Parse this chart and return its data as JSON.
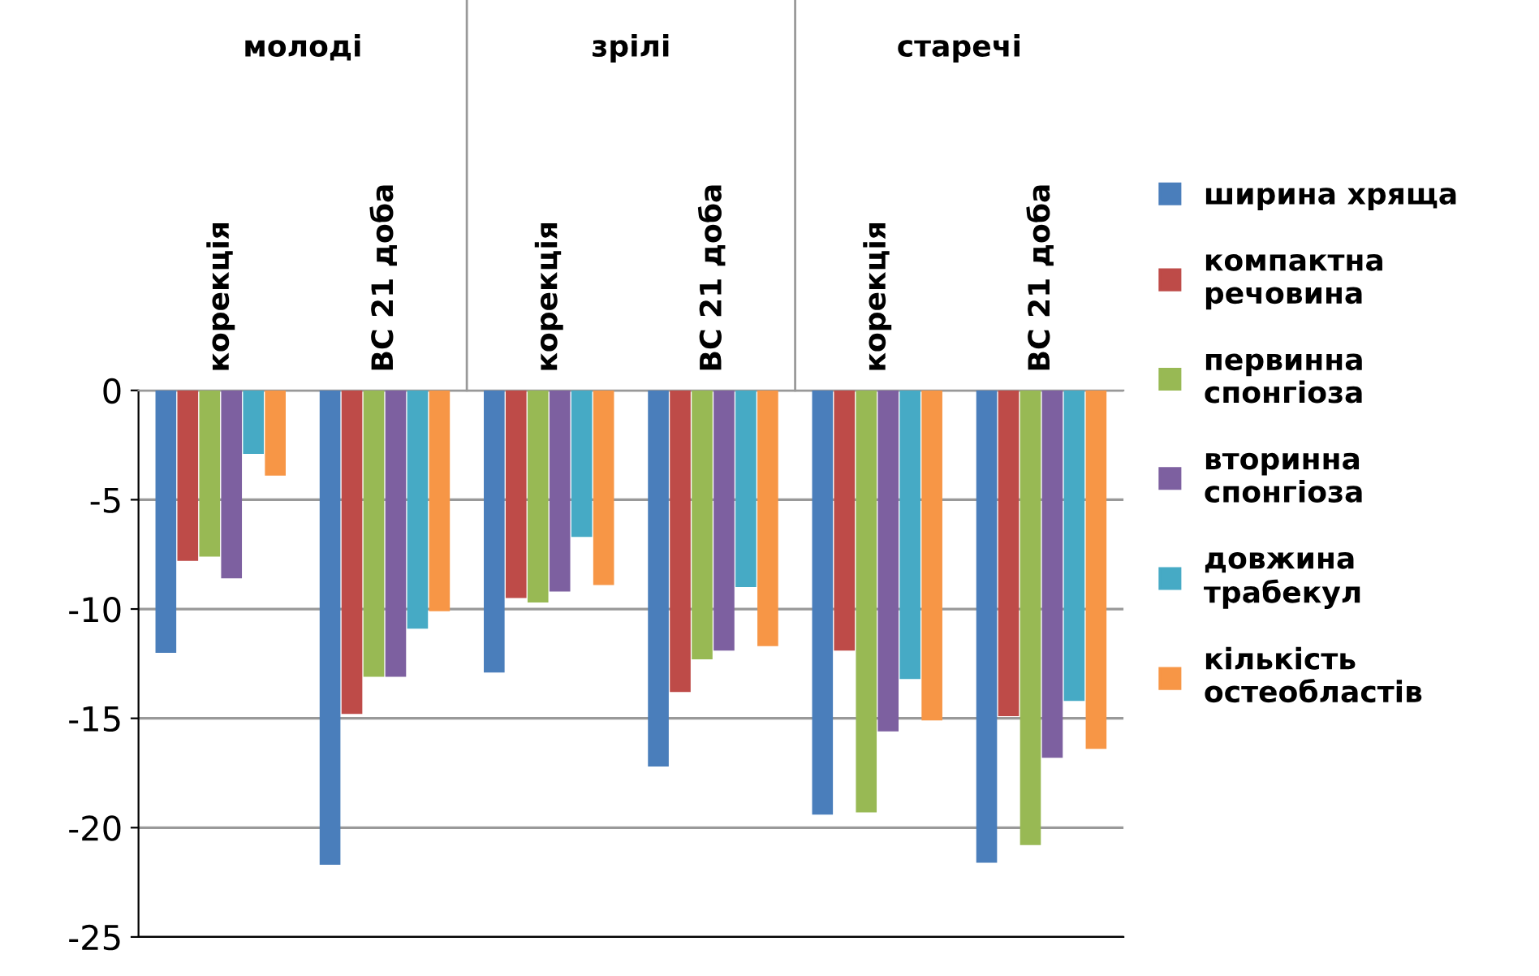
{
  "chart_data": {
    "type": "bar",
    "categories": [
      "корекція",
      "ВС 21 доба",
      "корекція",
      "ВС 21 доба",
      "корекція",
      "ВС 21 доба"
    ],
    "annotations": [
      "молоді",
      "зрілі",
      "старечі"
    ],
    "series": [
      {
        "name": "ширина хряща",
        "color": "#4a7ebb",
        "values": [
          -12.0,
          -21.7,
          -12.9,
          -17.2,
          -19.4,
          -21.6
        ]
      },
      {
        "name": "компактна речовина",
        "color": "#be4b48",
        "values": [
          -7.8,
          -14.8,
          -9.5,
          -13.8,
          -11.9,
          -14.9
        ]
      },
      {
        "name": "первинна спонгіоза",
        "color": "#98b954",
        "values": [
          -7.6,
          -13.1,
          -9.7,
          -12.3,
          -19.3,
          -20.8
        ]
      },
      {
        "name": "вторинна спонгіоза",
        "color": "#7d60a0",
        "values": [
          -8.6,
          -13.1,
          -9.2,
          -11.9,
          -15.6,
          -16.8
        ]
      },
      {
        "name": "довжина трабекул",
        "color": "#46aac5",
        "values": [
          -2.9,
          -10.9,
          -6.7,
          -9.0,
          -13.2,
          -14.2
        ]
      },
      {
        "name": "кількість остеобластів",
        "color": "#f79646",
        "values": [
          -3.9,
          -10.1,
          -8.9,
          -11.7,
          -15.1,
          -16.4
        ]
      }
    ],
    "ylim": [
      -25,
      0
    ],
    "yticks": [
      0,
      -5,
      -10,
      -15,
      -20,
      -25
    ],
    "grid": "y",
    "legend": "right"
  }
}
